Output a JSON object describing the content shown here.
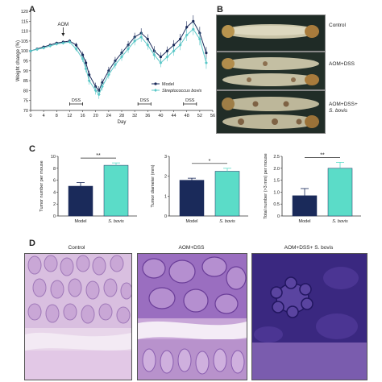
{
  "panels": {
    "a": "A",
    "b": "B",
    "c": "C",
    "d": "D"
  },
  "chart_data": [
    {
      "id": "weight-line-chart",
      "type": "line",
      "xlabel": "Day",
      "ylabel": "Weight change (%)",
      "xlim": [
        0,
        56
      ],
      "ylim": [
        70,
        120
      ],
      "xticks": [
        0,
        4,
        8,
        12,
        16,
        20,
        24,
        28,
        32,
        36,
        40,
        44,
        48,
        52,
        56
      ],
      "yticks": [
        70,
        75,
        80,
        85,
        90,
        95,
        100,
        105,
        110,
        115,
        120
      ],
      "annotations": {
        "aom": "AOM",
        "aom_day": 10,
        "dss_label": "DSS",
        "dss_periods": [
          [
            12,
            16
          ],
          [
            33,
            37
          ],
          [
            47,
            51
          ]
        ]
      },
      "legend_position": "center-right",
      "x": [
        0,
        2,
        4,
        6,
        8,
        10,
        12,
        14,
        16,
        17,
        18,
        20,
        21,
        22,
        24,
        26,
        28,
        30,
        32,
        34,
        36,
        38,
        40,
        42,
        44,
        46,
        48,
        50,
        52,
        54
      ],
      "series": [
        {
          "name": "Model",
          "color": "#1a2a5a",
          "values": [
            100,
            101,
            102,
            103,
            104,
            104.5,
            105,
            103,
            98,
            94,
            88,
            82,
            80,
            84,
            90,
            95,
            99,
            103,
            107,
            109,
            106,
            100,
            97,
            100,
            103,
            106,
            112,
            115,
            109,
            99
          ],
          "errors": [
            0.5,
            0.6,
            0.6,
            0.6,
            0.6,
            0.7,
            0.8,
            1.2,
            1.6,
            1.8,
            2.0,
            2.0,
            2.2,
            2.0,
            2.0,
            2.0,
            2.0,
            2.0,
            2.2,
            2.4,
            2.4,
            2.4,
            2.2,
            2.2,
            2.4,
            2.6,
            3.0,
            3.0,
            3.2,
            3.0
          ]
        },
        {
          "name": "Streptococcus bovis",
          "color": "#5bc8c8",
          "values": [
            100,
            100.8,
            101.5,
            102.5,
            103.5,
            104,
            104.5,
            101,
            96,
            91,
            85,
            80,
            78,
            82,
            88,
            93,
            97,
            101,
            105,
            107,
            103,
            98,
            94,
            97,
            100,
            103,
            108,
            111,
            106,
            94
          ],
          "errors": [
            0.5,
            0.6,
            0.6,
            0.6,
            0.6,
            0.7,
            0.8,
            1.2,
            1.6,
            1.8,
            2.0,
            2.0,
            2.2,
            2.0,
            2.0,
            2.0,
            2.0,
            2.0,
            2.2,
            2.4,
            2.4,
            2.4,
            2.2,
            2.2,
            2.4,
            2.6,
            3.0,
            3.0,
            3.2,
            3.0
          ]
        }
      ]
    },
    {
      "id": "tumor-number-bar-chart",
      "type": "bar",
      "categories": [
        "Model",
        "S. bovis"
      ],
      "values": [
        5,
        8.5
      ],
      "errors": [
        0.6,
        0.4
      ],
      "colors": [
        "#1a2a5a",
        "#5bdcc8"
      ],
      "ylabel": "Tumor number per mouse",
      "ylim": [
        0,
        10
      ],
      "yticks": [
        0,
        2,
        4,
        6,
        8,
        10
      ],
      "significance": "**"
    },
    {
      "id": "tumor-diameter-bar-chart",
      "type": "bar",
      "categories": [
        "Model",
        "S. bovis"
      ],
      "values": [
        1.8,
        2.25
      ],
      "errors": [
        0.1,
        0.15
      ],
      "colors": [
        "#1a2a5a",
        "#5bdcc8"
      ],
      "ylabel": "Tumor diameter (mm)",
      "ylim": [
        0,
        3
      ],
      "yticks": [
        0,
        1,
        2,
        3
      ],
      "significance": "*"
    },
    {
      "id": "large-tumor-bar-chart",
      "type": "bar",
      "categories": [
        "Model",
        "S. bovis"
      ],
      "values": [
        0.85,
        2.0
      ],
      "errors": [
        0.3,
        0.25
      ],
      "colors": [
        "#1a2a5a",
        "#5bdcc8"
      ],
      "ylabel": "Total number (>3 mm) per mouse",
      "ylim": [
        0,
        2.5
      ],
      "yticks": [
        0,
        0.5,
        1.0,
        1.5,
        2.0,
        2.5
      ],
      "significance": "**"
    }
  ],
  "colon_photos": {
    "labels": [
      {
        "line1": "Control",
        "line2": ""
      },
      {
        "line1": "AOM+DSS",
        "line2": ""
      },
      {
        "line1": "AOM+DSS+",
        "line2": "S. bovis"
      }
    ]
  },
  "histology": {
    "labels": [
      "Control",
      "AOM+DSS",
      "AOM+DSS+ S. bovis"
    ]
  }
}
